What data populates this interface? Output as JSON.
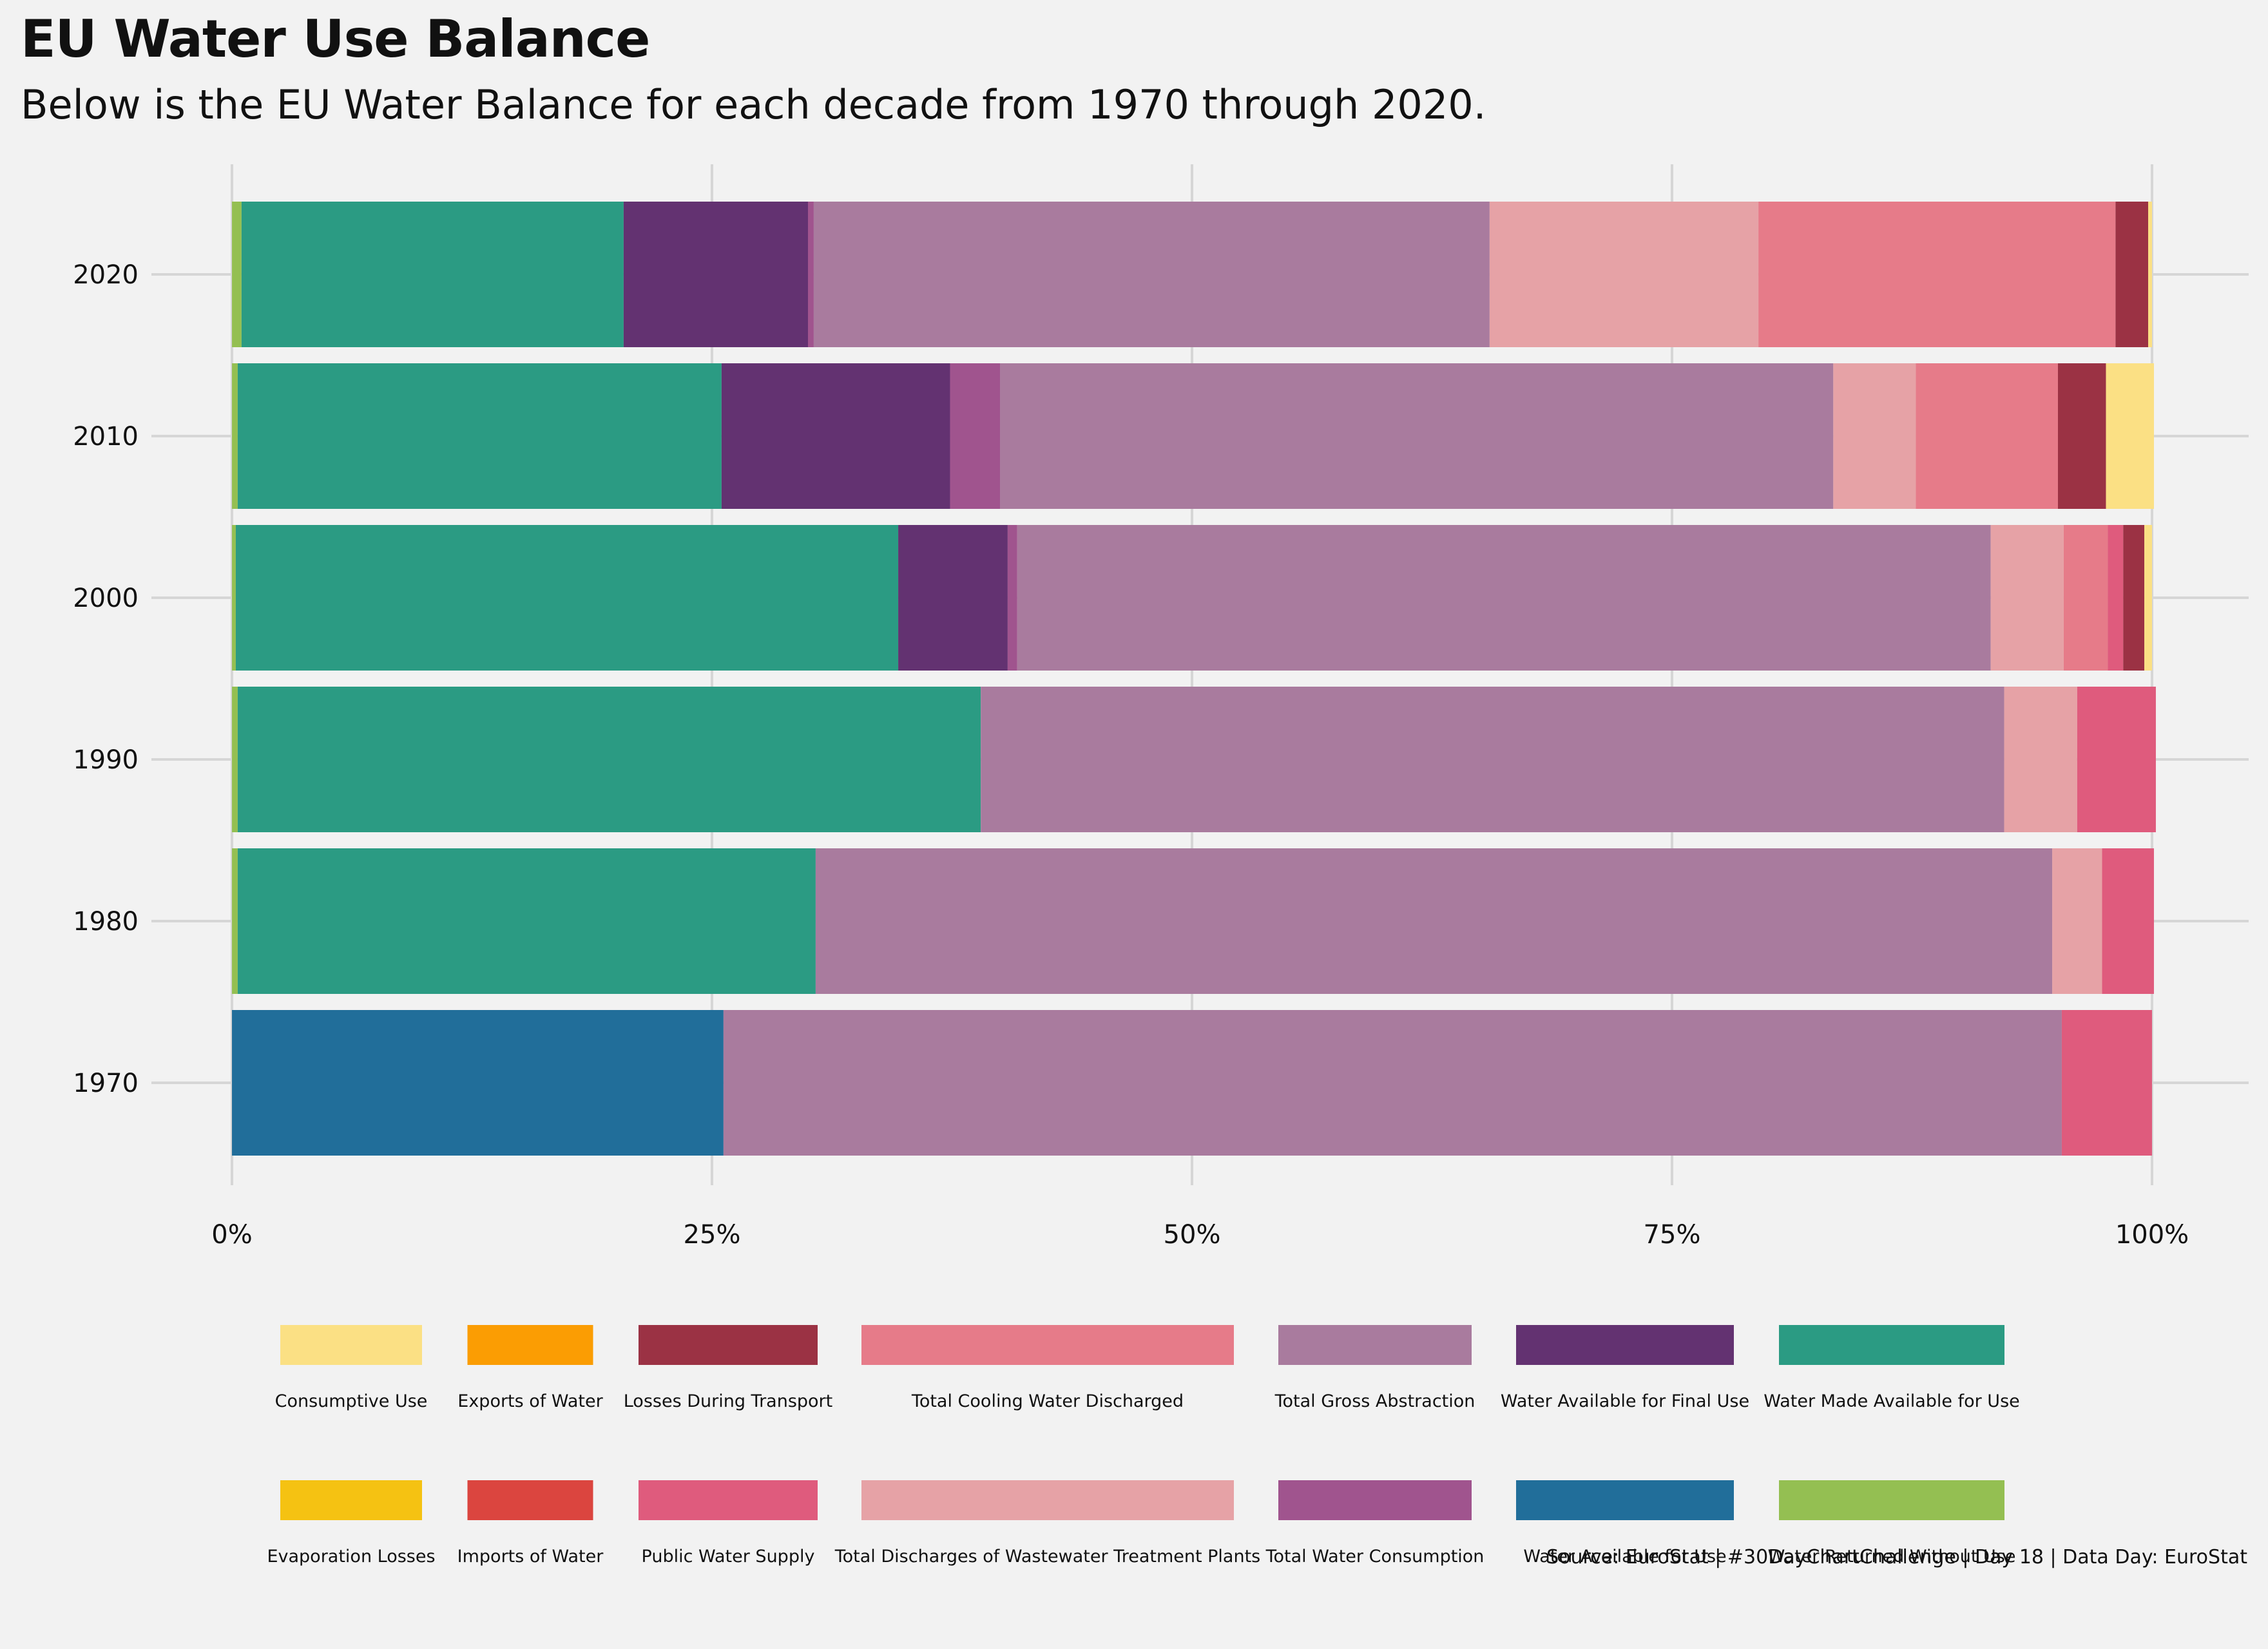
{
  "title": "EU Water Use Balance",
  "subtitle": "Below is the EU Water Balance for each decade from 1970 through 2020.",
  "caption": "Source: EuroStat | #30DayChartChallenge | Day 18 | Data Day: EuroStat",
  "chart_data": {
    "type": "bar",
    "orientation": "horizontal",
    "stacked": "percent",
    "title": "EU Water Use Balance",
    "subtitle": "Below is the EU Water Balance for each decade from 1970 through 2020.",
    "categories": [
      "2020",
      "2010",
      "2000",
      "1990",
      "1980",
      "1970"
    ],
    "xlim": [
      0,
      100
    ],
    "x_ticks": [
      "0%",
      "25%",
      "50%",
      "75%",
      "100%"
    ],
    "grid": true,
    "legend_position": "bottom",
    "legend_layout": [
      [
        "Consumptive Use",
        "Exports of Water",
        "Losses During Transport",
        "Total Cooling Water Discharged",
        "Total Gross Abstraction",
        "Water Available for Final Use",
        "Water Made Available for Use"
      ],
      [
        "Evaporation Losses",
        "Imports of Water",
        "Public Water Supply",
        "Total Discharges of Wastewater Treatment Plants",
        "Total Water Consumption",
        "Water Available for Use",
        "Water Returned Without Use"
      ]
    ],
    "series": [
      {
        "name": "Water Returned Without Use",
        "color": "#94bf52",
        "values": [
          0.5,
          0.3,
          0.2,
          0.3,
          0.3,
          0
        ]
      },
      {
        "name": "Water Available for Use",
        "color": "#216e9a",
        "values": [
          0,
          0,
          0,
          0,
          0,
          25.6
        ]
      },
      {
        "name": "Water Made Available for Use",
        "color": "#2b9b83",
        "values": [
          19.9,
          25.2,
          34.5,
          38.7,
          30.1,
          0
        ]
      },
      {
        "name": "Water Available for Final Use",
        "color": "#633271",
        "values": [
          9.6,
          11.9,
          5.7,
          0,
          0,
          0
        ]
      },
      {
        "name": "Total Water Consumption",
        "color": "#a0548e",
        "values": [
          0.3,
          2.6,
          0.5,
          0,
          0,
          0
        ]
      },
      {
        "name": "Total Gross Abstraction",
        "color": "#a97b9e",
        "values": [
          35.2,
          43.4,
          50.7,
          53.3,
          64.4,
          69.7
        ]
      },
      {
        "name": "Total Discharges of Wastewater Treatment Plants",
        "color": "#e6a2a6",
        "values": [
          14.0,
          4.3,
          3.8,
          3.8,
          2.6,
          0
        ]
      },
      {
        "name": "Total Cooling Water Discharged",
        "color": "#e67b89",
        "values": [
          18.6,
          7.4,
          2.3,
          0,
          0,
          0
        ]
      },
      {
        "name": "Public Water Supply",
        "color": "#df5b7d",
        "values": [
          0,
          0,
          0.8,
          4.1,
          2.7,
          4.7
        ]
      },
      {
        "name": "Losses During Transport",
        "color": "#9b3244",
        "values": [
          1.7,
          2.5,
          1.1,
          0,
          0,
          0
        ]
      },
      {
        "name": "Consumptive Use",
        "color": "#fbe084",
        "values": [
          0.2,
          2.5,
          0.4,
          0,
          0,
          0
        ]
      },
      {
        "name": "Exports of Water",
        "color": "#fb9d03",
        "values": [
          0,
          0,
          0,
          0,
          0,
          0
        ]
      },
      {
        "name": "Evaporation Losses",
        "color": "#f5c212",
        "values": [
          0,
          0,
          0,
          0,
          0,
          0
        ]
      },
      {
        "name": "Imports of Water",
        "color": "#db453f",
        "values": [
          0,
          0,
          0,
          0,
          0,
          0
        ]
      }
    ]
  }
}
